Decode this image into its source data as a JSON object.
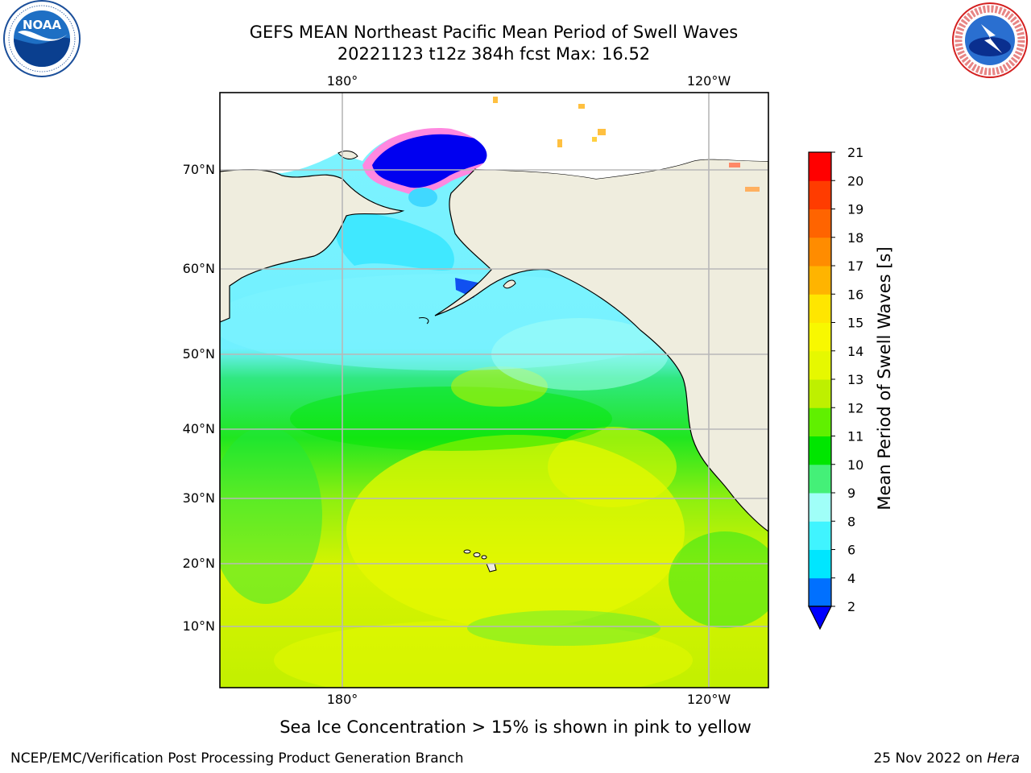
{
  "header": {
    "title_line1": "GEFS MEAN Northeast Pacific Mean Period of Swell Waves",
    "title_line2": "20221123 t12z 384h fcst   Max: 16.52"
  },
  "map": {
    "top_ticks": [
      "180°",
      "120°W"
    ],
    "bottom_ticks": [
      "180°",
      "120°W"
    ],
    "lat_ticks": [
      "70°N",
      "60°N",
      "50°N",
      "40°N",
      "30°N",
      "20°N",
      "10°N"
    ],
    "colors": {
      "land": "#efedde",
      "coast": "#000000",
      "grid": "#b8b8b8"
    }
  },
  "colorbar": {
    "label": "Mean Period of Swell Waves [s]",
    "ticks": [
      "2",
      "4",
      "6",
      "8",
      "9",
      "10",
      "11",
      "12",
      "13",
      "14",
      "15",
      "16",
      "17",
      "18",
      "19",
      "20",
      "21"
    ],
    "colors": [
      "#0070ff",
      "#00e6ff",
      "#40f4ff",
      "#a0fff8",
      "#44f078",
      "#00e600",
      "#60f000",
      "#bef000",
      "#e6f800",
      "#f8f800",
      "#ffe600",
      "#ffb400",
      "#ff8c00",
      "#ff6400",
      "#ff3c00",
      "#ff0000"
    ],
    "under_color": "#0000ff"
  },
  "footer": {
    "note": "Sea Ice Concentration > 15% is shown in pink to yellow",
    "credit": "NCEP/EMC/Verification Post Processing Product Generation Branch",
    "date": "25 Nov 2022 on ",
    "machine": "Hera"
  }
}
